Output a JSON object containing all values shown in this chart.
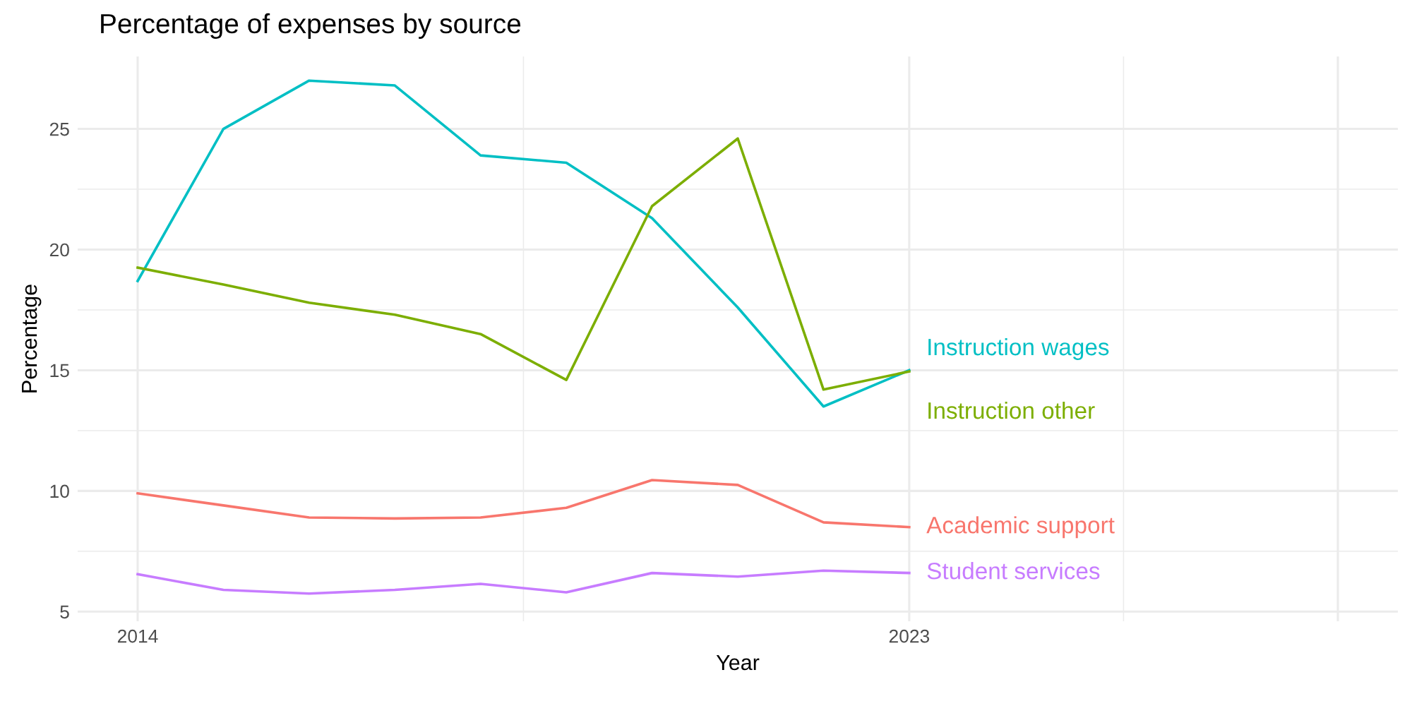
{
  "chart_data": {
    "type": "line",
    "title": "Percentage of expenses by source",
    "xlabel": "Year",
    "ylabel": "Percentage",
    "x": [
      2014,
      2015,
      2016,
      2017,
      2018,
      2019,
      2020,
      2021,
      2022,
      2023
    ],
    "series": [
      {
        "name": "Instruction wages",
        "color": "#00bfc4",
        "values": [
          18.7,
          25.0,
          27.0,
          26.8,
          23.9,
          23.6,
          21.3,
          17.6,
          13.5,
          15.0
        ]
      },
      {
        "name": "Instruction other",
        "color": "#7cae00",
        "values": [
          19.25,
          18.55,
          17.8,
          17.3,
          16.5,
          14.6,
          21.8,
          24.6,
          14.2,
          14.95
        ]
      },
      {
        "name": "Academic support",
        "color": "#f8766d",
        "values": [
          9.9,
          9.4,
          8.9,
          8.86,
          8.9,
          9.3,
          10.45,
          10.25,
          8.7,
          8.5
        ]
      },
      {
        "name": "Student services",
        "color": "#c77cff",
        "values": [
          6.55,
          5.9,
          5.75,
          5.9,
          6.15,
          5.8,
          6.6,
          6.45,
          6.7,
          6.6
        ]
      }
    ],
    "xlim": [
      2013.3,
      2028.7
    ],
    "xticks": [
      2014,
      2023,
      {
        "value": 2028,
        "label": null
      }
    ],
    "ylim": [
      4.6,
      28.0
    ],
    "yticks": [
      5,
      10,
      15,
      20,
      25
    ],
    "grid": true,
    "legend": false,
    "marker": "none",
    "line_style": "solid"
  }
}
